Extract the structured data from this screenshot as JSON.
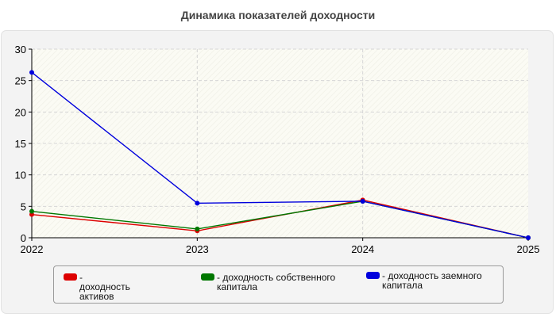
{
  "chart_data": {
    "type": "line",
    "title": "Динамика показателей доходности",
    "x": [
      "2022",
      "2023",
      "2024",
      "2025"
    ],
    "ylim": [
      0,
      30
    ],
    "yticks": [
      0,
      5,
      10,
      15,
      20,
      25,
      30
    ],
    "grid": true,
    "legend_position": "bottom",
    "series": [
      {
        "name": "- доходность активов",
        "color": "#dd0000",
        "values": [
          3.7,
          1.1,
          6.0,
          0.0
        ]
      },
      {
        "name": "- доходность собственного капитала",
        "color": "#007700",
        "values": [
          4.2,
          1.4,
          5.8,
          0.0
        ]
      },
      {
        "name": "- доходность заемного капитала",
        "color": "#0000dd",
        "values": [
          26.3,
          5.5,
          5.8,
          0.0
        ]
      }
    ]
  }
}
